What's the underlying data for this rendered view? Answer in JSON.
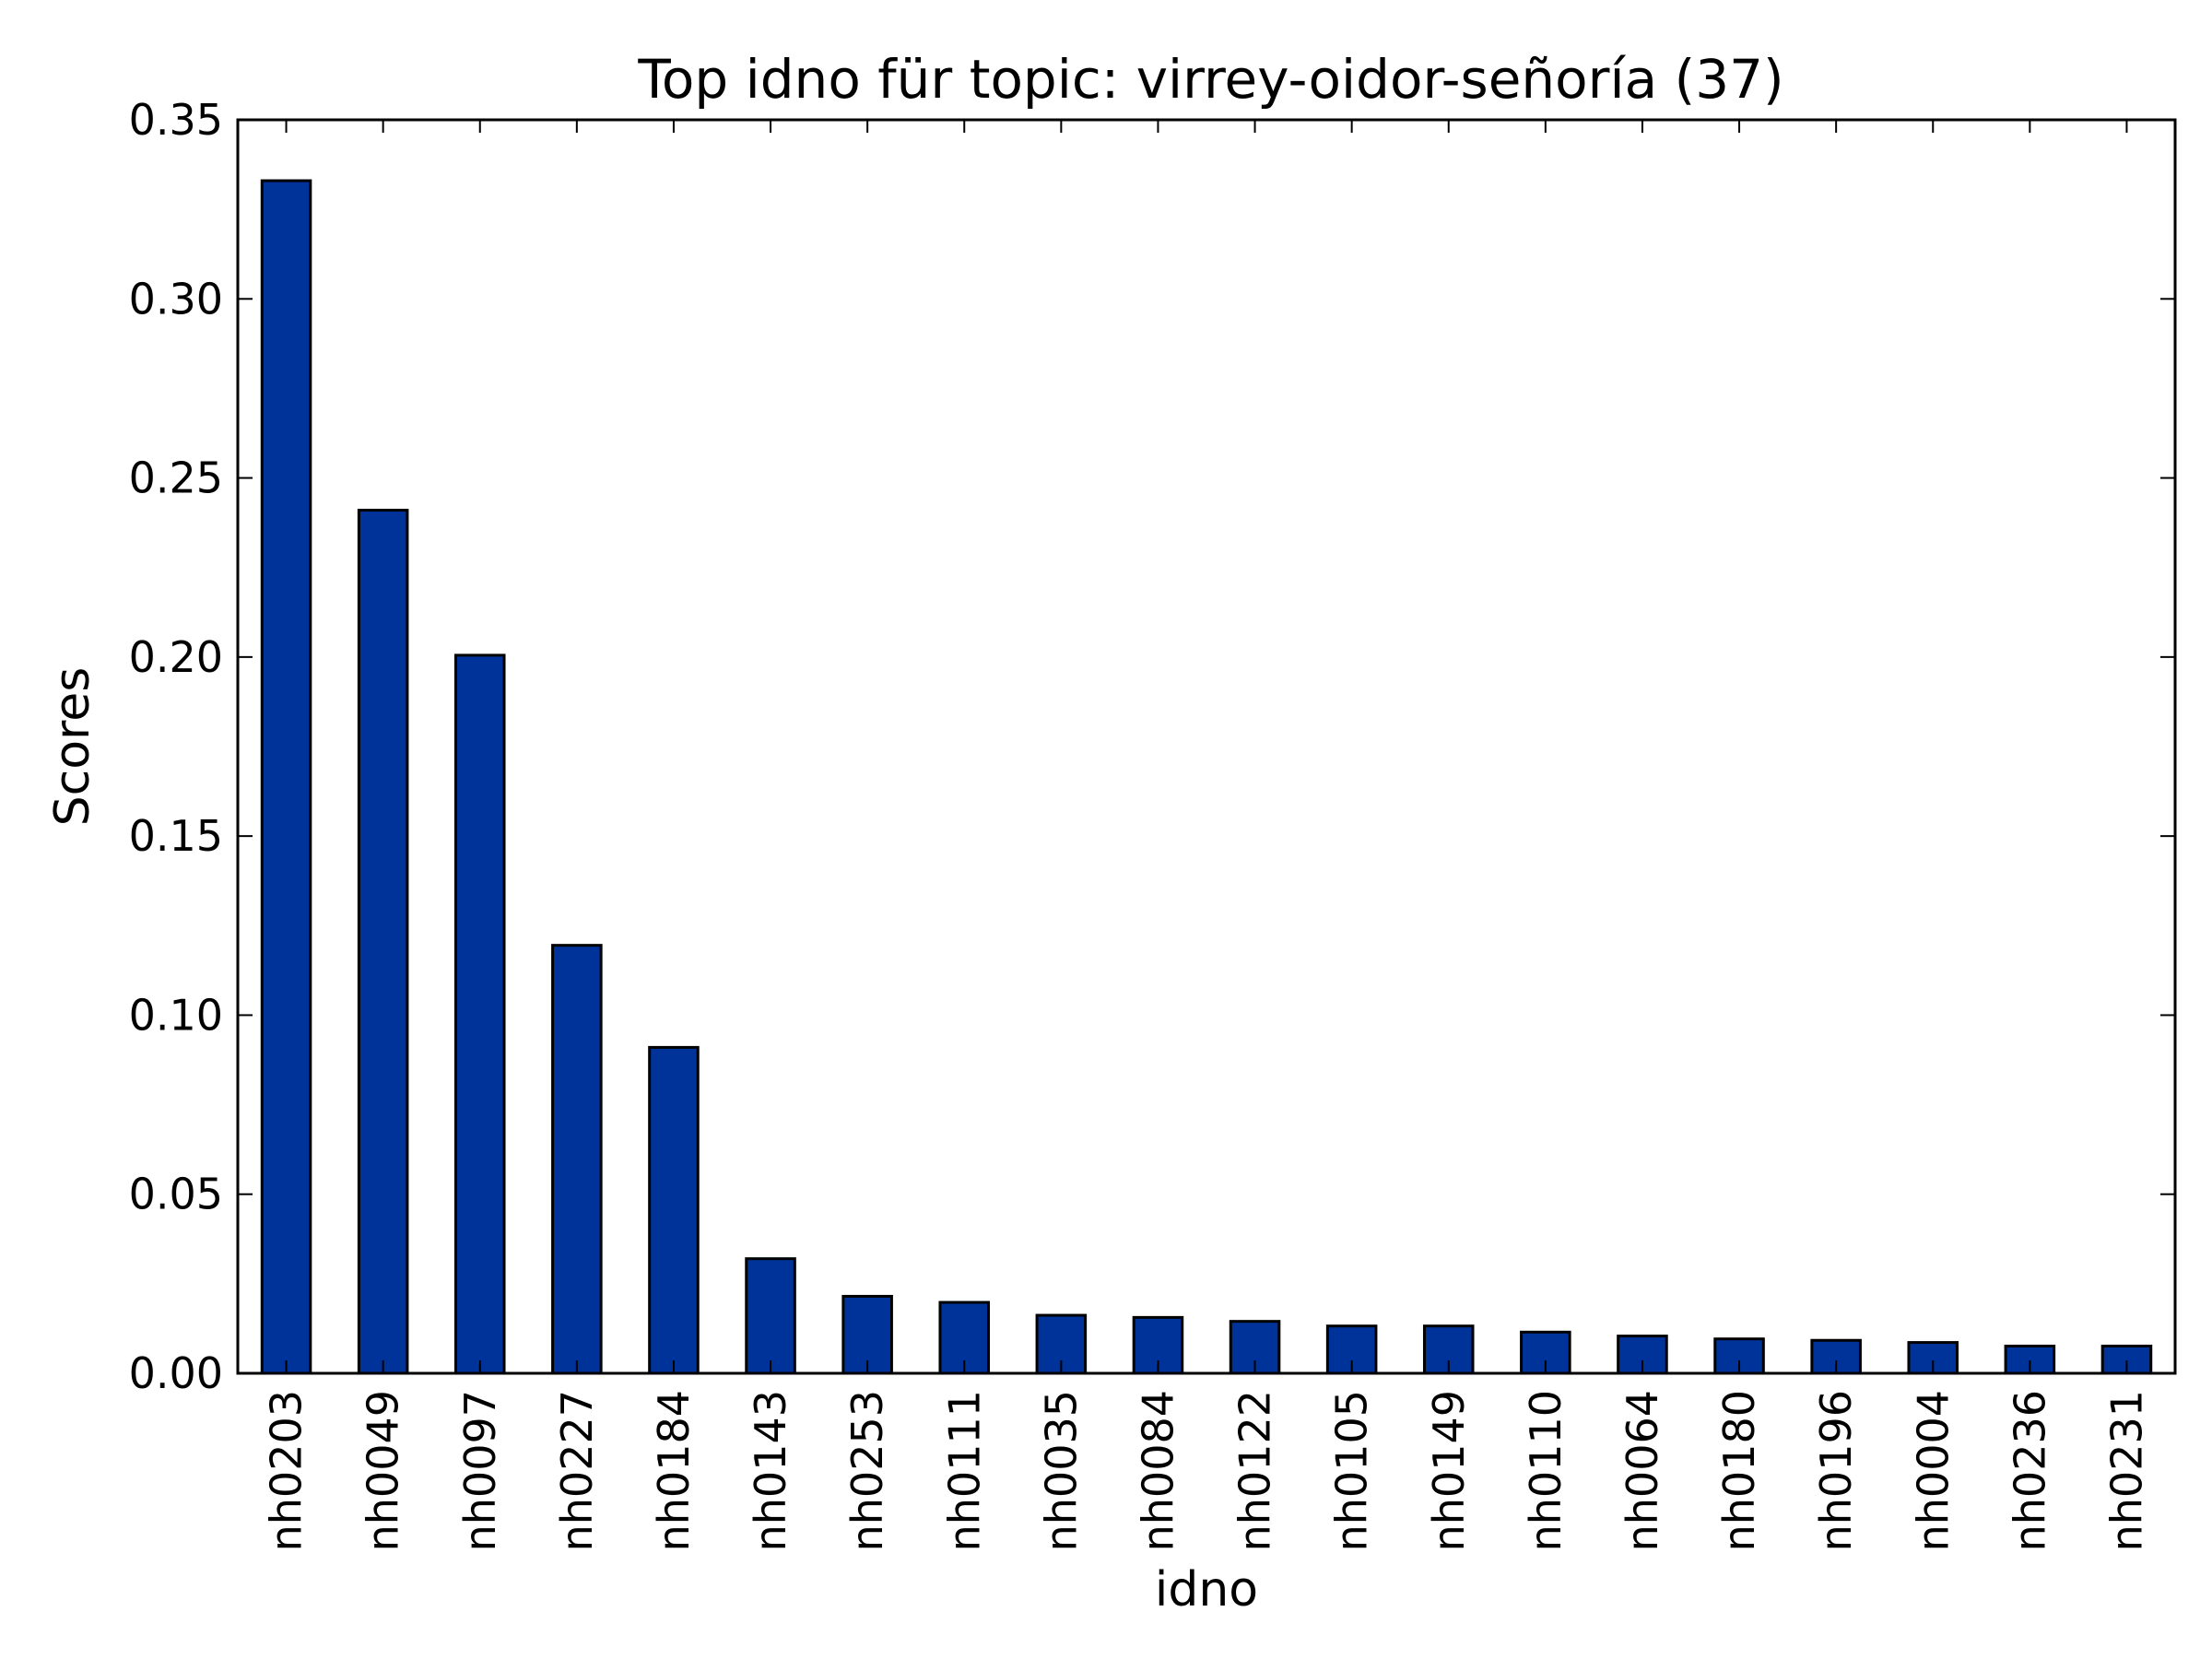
{
  "chart_data": {
    "type": "bar",
    "title": "Top idno für topic: virrey-oidor-señoría (37)",
    "xlabel": "idno",
    "ylabel": "Scores",
    "categories": [
      "nh0203",
      "nh0049",
      "nh0097",
      "nh0227",
      "nh0184",
      "nh0143",
      "nh0253",
      "nh0111",
      "nh0035",
      "nh0084",
      "nh0122",
      "nh0105",
      "nh0149",
      "nh0110",
      "nh0064",
      "nh0180",
      "nh0196",
      "nh0004",
      "nh0236",
      "nh0231"
    ],
    "values": [
      0.333,
      0.241,
      0.2005,
      0.1195,
      0.091,
      0.032,
      0.0215,
      0.0198,
      0.0162,
      0.0156,
      0.0145,
      0.0132,
      0.0132,
      0.0115,
      0.0104,
      0.0096,
      0.0092,
      0.0086,
      0.0076,
      0.0076
    ],
    "ylim": [
      0,
      0.35
    ],
    "yticks": [
      "0.00",
      "0.05",
      "0.10",
      "0.15",
      "0.20",
      "0.25",
      "0.30",
      "0.35"
    ],
    "grid": false,
    "bar_color": "#003399",
    "edge_color": "#000000"
  }
}
